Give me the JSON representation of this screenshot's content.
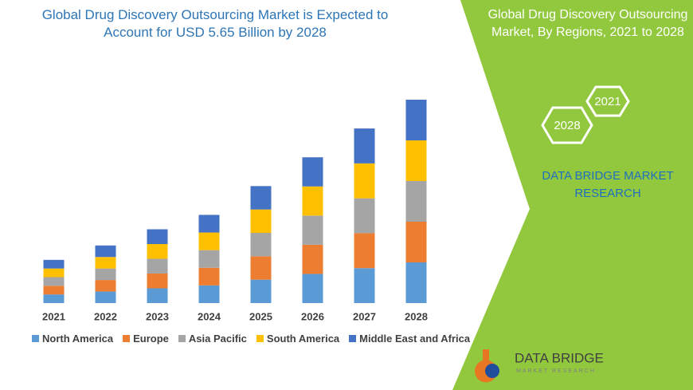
{
  "chart_data": {
    "type": "bar",
    "stacked": true,
    "title": "Global Drug Discovery Outsourcing Market is Expected to Account for USD 5.65 Billion by 2028",
    "categories": [
      "2021",
      "2022",
      "2023",
      "2024",
      "2025",
      "2026",
      "2027",
      "2028"
    ],
    "series": [
      {
        "name": "North America",
        "color": "#5b9bd5",
        "values": [
          0.24,
          0.32,
          0.41,
          0.49,
          0.65,
          0.81,
          0.97,
          1.13
        ]
      },
      {
        "name": "Europe",
        "color": "#ed7d31",
        "values": [
          0.24,
          0.32,
          0.41,
          0.49,
          0.65,
          0.81,
          0.97,
          1.13
        ]
      },
      {
        "name": "Asia Pacific",
        "color": "#a5a5a5",
        "values": [
          0.24,
          0.32,
          0.41,
          0.49,
          0.65,
          0.81,
          0.97,
          1.13
        ]
      },
      {
        "name": "South America",
        "color": "#ffc000",
        "values": [
          0.24,
          0.32,
          0.41,
          0.49,
          0.65,
          0.81,
          0.97,
          1.13
        ]
      },
      {
        "name": "Middle East and Africa",
        "color": "#4472c4",
        "values": [
          0.24,
          0.32,
          0.41,
          0.49,
          0.65,
          0.81,
          0.97,
          1.13
        ]
      }
    ]
  },
  "panel": {
    "title": "Global Drug Discovery Outsourcing Market, By Regions, 2021 to 2028",
    "hex_back": "2021",
    "hex_front": "2028",
    "brand": "DATA BRIDGE MARKET RESEARCH",
    "logo_name": "DATA BRIDGE",
    "logo_sub": "MARKET RESEARCH"
  }
}
